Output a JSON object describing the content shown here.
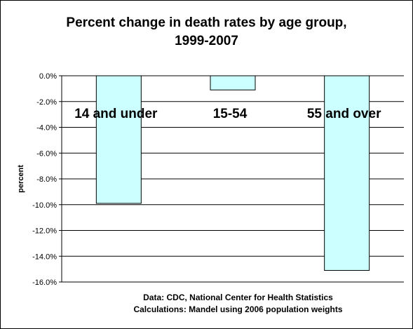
{
  "chart_data": {
    "type": "bar",
    "title": "Percent change in death rates by age group,",
    "subtitle": "1999-2007",
    "ylabel": "percent",
    "xlabel": "",
    "categories": [
      "14 and under",
      "15-54",
      "55 and over"
    ],
    "values": [
      -9.9,
      -1.1,
      -15.1
    ],
    "ylim": [
      -16.0,
      0.0
    ],
    "ytick_step": 2.0,
    "ytick_labels": [
      "0.0%",
      "-2.0%",
      "-4.0%",
      "-6.0%",
      "-8.0%",
      "-10.0%",
      "-12.0%",
      "-14.0%",
      "-16.0%"
    ],
    "grid": true,
    "legend": "none",
    "bar_color": "#ccffff",
    "bar_border_color": "#000000",
    "gridline_color": "#000000"
  },
  "notes": {
    "line1": "Data: CDC, National Center for Health Statistics",
    "line2": "Calculations: Mandel using 2006 population weights"
  }
}
